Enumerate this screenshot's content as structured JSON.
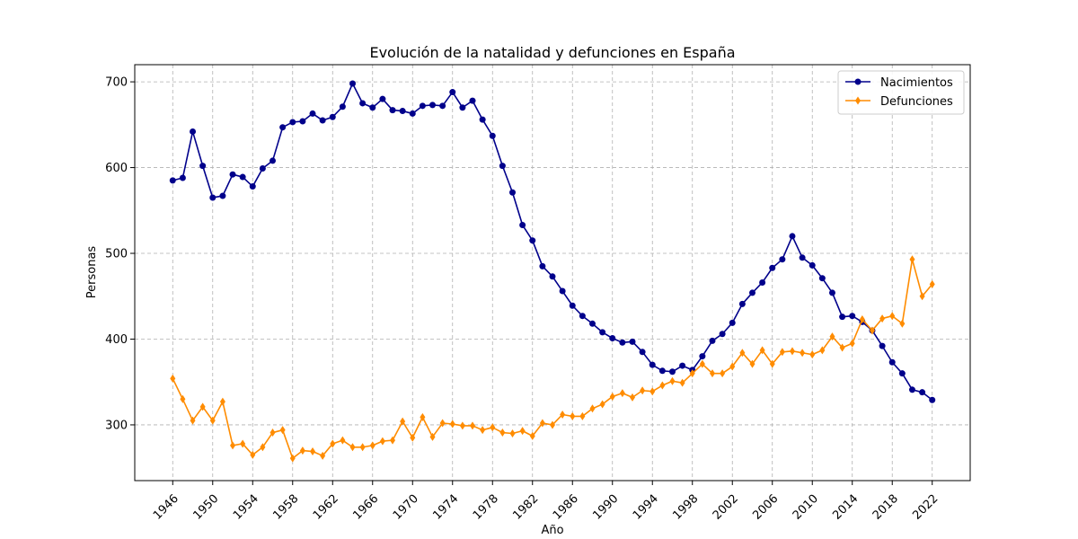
{
  "chart_data": {
    "type": "line",
    "title": "Evolución de la natalidad y defunciones en España",
    "xlabel": "Año",
    "ylabel": "Personas",
    "xlim": [
      1942.2,
      2025.8
    ],
    "ylim": [
      235,
      720
    ],
    "xticks": [
      1946,
      1950,
      1954,
      1958,
      1962,
      1966,
      1970,
      1974,
      1978,
      1982,
      1986,
      1990,
      1994,
      1998,
      2002,
      2006,
      2010,
      2014,
      2018,
      2022
    ],
    "yticks": [
      300,
      400,
      500,
      600,
      700
    ],
    "grid": true,
    "legend_position": "top-right",
    "x": [
      1946,
      1947,
      1948,
      1949,
      1950,
      1951,
      1952,
      1953,
      1954,
      1955,
      1956,
      1957,
      1958,
      1959,
      1960,
      1961,
      1962,
      1963,
      1964,
      1965,
      1966,
      1967,
      1968,
      1969,
      1970,
      1971,
      1972,
      1973,
      1974,
      1975,
      1976,
      1977,
      1978,
      1979,
      1980,
      1981,
      1982,
      1983,
      1984,
      1985,
      1986,
      1987,
      1988,
      1989,
      1990,
      1991,
      1992,
      1993,
      1994,
      1995,
      1996,
      1997,
      1998,
      1999,
      2000,
      2001,
      2002,
      2003,
      2004,
      2005,
      2006,
      2007,
      2008,
      2009,
      2010,
      2011,
      2012,
      2013,
      2014,
      2015,
      2016,
      2017,
      2018,
      2019,
      2020,
      2021,
      2022
    ],
    "series": [
      {
        "name": "Nacimientos",
        "color": "#00008b",
        "marker": "circle",
        "values": [
          585,
          588,
          642,
          602,
          565,
          567,
          592,
          589,
          578,
          599,
          608,
          647,
          653,
          654,
          663,
          655,
          659,
          671,
          698,
          675,
          670,
          680,
          667,
          666,
          663,
          672,
          673,
          672,
          688,
          670,
          678,
          656,
          637,
          602,
          571,
          533,
          515,
          485,
          473,
          456,
          439,
          427,
          418,
          408,
          401,
          396,
          397,
          385,
          370,
          363,
          362,
          369,
          364,
          380,
          398,
          406,
          419,
          441,
          454,
          466,
          483,
          493,
          520,
          495,
          486,
          471,
          454,
          426,
          427,
          420,
          410,
          392,
          373,
          360,
          341,
          338,
          329
        ]
      },
      {
        "name": "Defunciones",
        "color": "#ff8c00",
        "marker": "diamond",
        "values": [
          354,
          330,
          305,
          321,
          305,
          327,
          276,
          278,
          265,
          274,
          291,
          294,
          261,
          270,
          269,
          264,
          278,
          282,
          274,
          274,
          276,
          281,
          282,
          304,
          285,
          309,
          286,
          302,
          301,
          299,
          299,
          294,
          297,
          291,
          290,
          293,
          287,
          302,
          300,
          312,
          310,
          310,
          319,
          324,
          333,
          337,
          332,
          340,
          339,
          346,
          351,
          349,
          360,
          371,
          360,
          360,
          368,
          384,
          371,
          387,
          371,
          385,
          386,
          384,
          382,
          387,
          403,
          390,
          395,
          423,
          410,
          424,
          427,
          418,
          493,
          450,
          464
        ]
      }
    ]
  }
}
